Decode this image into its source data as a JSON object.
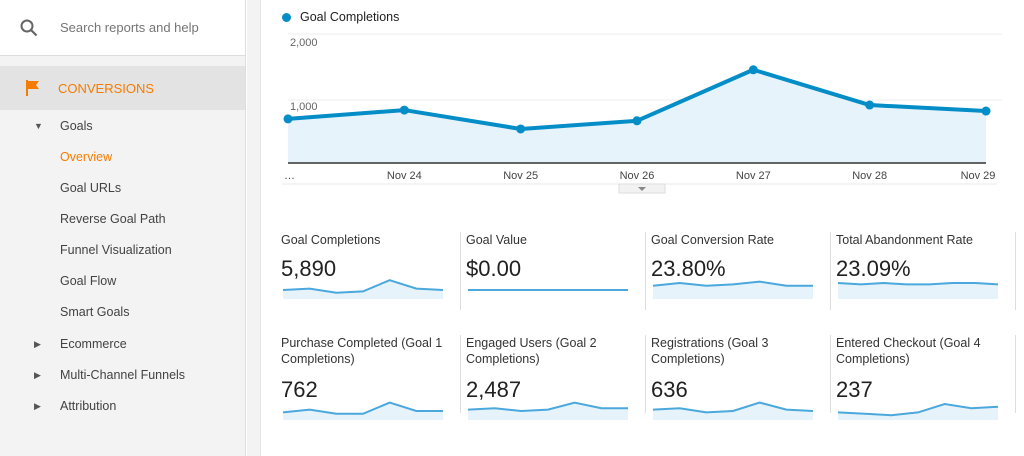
{
  "sidebar": {
    "search_placeholder": "Search reports and help",
    "section": "CONVERSIONS",
    "items": [
      {
        "label": "Goals",
        "level": 1,
        "expanded": true
      },
      {
        "label": "Overview",
        "level": 2,
        "active": true
      },
      {
        "label": "Goal URLs",
        "level": 2
      },
      {
        "label": "Reverse Goal Path",
        "level": 2
      },
      {
        "label": "Funnel Visualization",
        "level": 2
      },
      {
        "label": "Goal Flow",
        "level": 2
      },
      {
        "label": "Smart Goals",
        "level": 2
      },
      {
        "label": "Ecommerce",
        "level": 1,
        "expanded": false
      },
      {
        "label": "Multi-Channel Funnels",
        "level": 1,
        "expanded": false
      },
      {
        "label": "Attribution",
        "level": 1,
        "expanded": false
      }
    ]
  },
  "colors": {
    "accent": "#f57c00",
    "series": "#058dc7",
    "fill": "#e6f3fa"
  },
  "chart_data": {
    "type": "area",
    "legend": "Goal Completions",
    "x_labels": [
      "…",
      "Nov 24",
      "Nov 25",
      "Nov 26",
      "Nov 27",
      "Nov 28",
      "Nov 29"
    ],
    "y_ticks": [
      "2,000",
      "1,000"
    ],
    "ylim": [
      0,
      2000
    ],
    "series": [
      {
        "name": "Goal Completions",
        "values": [
          700,
          840,
          540,
          670,
          1480,
          920,
          825
        ]
      }
    ]
  },
  "tiles": [
    {
      "label": "Goal Completions",
      "value": "5,890",
      "spark": [
        5,
        6,
        3,
        4,
        12,
        6,
        5
      ]
    },
    {
      "label": "Goal Value",
      "value": "$0.00",
      "spark": [
        5,
        5,
        5,
        5,
        5,
        5,
        5
      ]
    },
    {
      "label": "Goal Conversion Rate",
      "value": "23.80%",
      "spark": [
        8,
        10,
        8,
        9,
        11,
        8,
        8
      ]
    },
    {
      "label": "Total Abandonment Rate",
      "value": "23.09%",
      "spark": [
        10,
        9,
        10,
        9,
        9,
        10,
        10,
        9
      ]
    },
    {
      "label": "Purchase Completed (Goal 1 Completions)",
      "value": "762",
      "spark": [
        4,
        6,
        3,
        3,
        11,
        5,
        5
      ]
    },
    {
      "label": "Engaged Users (Goal 2 Completions)",
      "value": "2,487",
      "spark": [
        6,
        7,
        5,
        6,
        11,
        7,
        7
      ]
    },
    {
      "label": "Registrations (Goal 3 Completions)",
      "value": "636",
      "spark": [
        6,
        7,
        4,
        5,
        11,
        6,
        5
      ]
    },
    {
      "label": "Entered Checkout (Goal 4 Completions)",
      "value": "237",
      "spark": [
        4,
        3,
        2,
        4,
        10,
        7,
        8
      ]
    }
  ]
}
